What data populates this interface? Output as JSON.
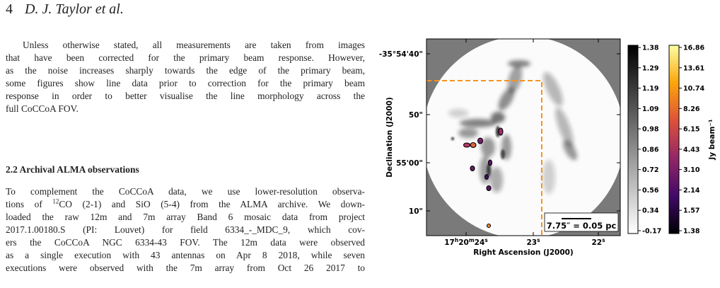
{
  "header": {
    "page_number": "4",
    "authors": "D. J. Taylor et al."
  },
  "intro": {
    "lines": [
      "Unless otherwise stated, all measurements are taken from images",
      "that have been corrected for the primary beam response. However,",
      "as the noise increases sharply towards the edge of the primary beam,",
      "some figures show line data prior to correction for the primary beam",
      "response in order to better visualise the line morphology across the",
      "full CoCCoA FOV."
    ]
  },
  "section": {
    "title": "2.2  Archival ALMA observations"
  },
  "archival": {
    "l1": "To complement the CoCCoA data, we use lower-resolution observa-",
    "l2_pre": "tions of ",
    "l2_iso": "12",
    "l2_post": "CO (2-1) and SiO (5-4) from the ALMA archive. We down-",
    "l3": "loaded the raw 12m and 7m array Band 6 mosaic data from project",
    "l4": "2017.1.00180.S (PI: Louvet) for field 6334_-_MDC_9, which cov-",
    "l5": "ers the CoCCoA NGC 6334-43 FOV. The 12m data were observed",
    "l6": "as a single execution with 43 antennas on Apr 8 2018, while seven",
    "l7": "executions were observed with the 7m array from Oct 26 2017 to"
  },
  "figure": {
    "y_axis_label": "Declination (J2000)",
    "x_axis_label": "Right Ascension (J2000)",
    "dec_ticks": [
      "-35°54'40\"",
      "50\"",
      "55'00\"",
      "10\""
    ],
    "ra_ticks": [
      "17h20m24s",
      "23s",
      "22s"
    ],
    "scalebar_label": "7.75″ = 0.05 pc",
    "colorbar_gray": {
      "colors": [
        "#ffffff",
        "#000000"
      ],
      "ticks": [
        "1.38",
        "1.29",
        "1.19",
        "1.09",
        "0.98",
        "0.86",
        "0.72",
        "0.56",
        "0.34",
        "-0.17"
      ]
    },
    "colorbar_inferno": {
      "colors": [
        "#000004",
        "#420a68",
        "#932667",
        "#dd513a",
        "#fca50a",
        "#fcffa4"
      ],
      "ticks": [
        "16.86",
        "13.61",
        "10.74",
        "8.26",
        "6.15",
        "4.43",
        "3.10",
        "2.14",
        "1.57",
        "1.38"
      ],
      "unit_label": "Jy beam⁻¹"
    },
    "box_color": "#f7931e"
  }
}
